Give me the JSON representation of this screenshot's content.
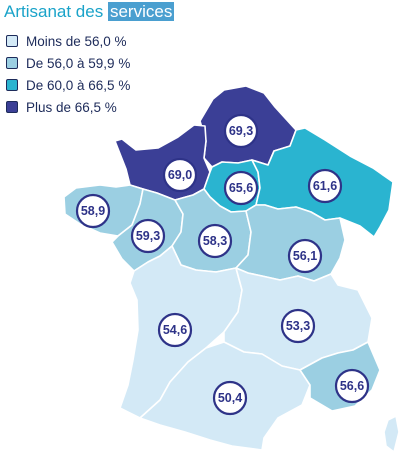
{
  "title": {
    "main": "Artisanat des",
    "highlight": "services"
  },
  "legend": [
    {
      "label": "Moins de 56,0 %",
      "color": "#d3e9f6"
    },
    {
      "label": "De 56,0 à 59,9 %",
      "color": "#9bcfe2"
    },
    {
      "label": "De 60,0 à 66,5 %",
      "color": "#2ab4d0"
    },
    {
      "label": "Plus de 66,5 %",
      "color": "#3b3f96"
    }
  ],
  "regions": [
    {
      "id": "hauts-de-france",
      "value": "69,3",
      "color": "#3b3f96"
    },
    {
      "id": "normandie",
      "value": "69,0",
      "color": "#3b3f96"
    },
    {
      "id": "ile-de-france",
      "value": "65,6",
      "color": "#2ab4d0"
    },
    {
      "id": "grand-est",
      "value": "61,6",
      "color": "#2ab4d0"
    },
    {
      "id": "bretagne",
      "value": "58,9",
      "color": "#9bcfe2"
    },
    {
      "id": "pays-de-la-loire",
      "value": "59,3",
      "color": "#9bcfe2"
    },
    {
      "id": "centre-val-de-loire",
      "value": "58,3",
      "color": "#9bcfe2"
    },
    {
      "id": "bourgogne-franche-comte",
      "value": "56,1",
      "color": "#9bcfe2"
    },
    {
      "id": "nouvelle-aquitaine",
      "value": "54,6",
      "color": "#d3e9f6"
    },
    {
      "id": "auvergne-rhone-alpes",
      "value": "53,3",
      "color": "#d3e9f6"
    },
    {
      "id": "occitanie",
      "value": "50,4",
      "color": "#d3e9f6"
    },
    {
      "id": "provence-alpes-cote-dazur",
      "value": "56,6",
      "color": "#9bcfe2"
    }
  ]
}
